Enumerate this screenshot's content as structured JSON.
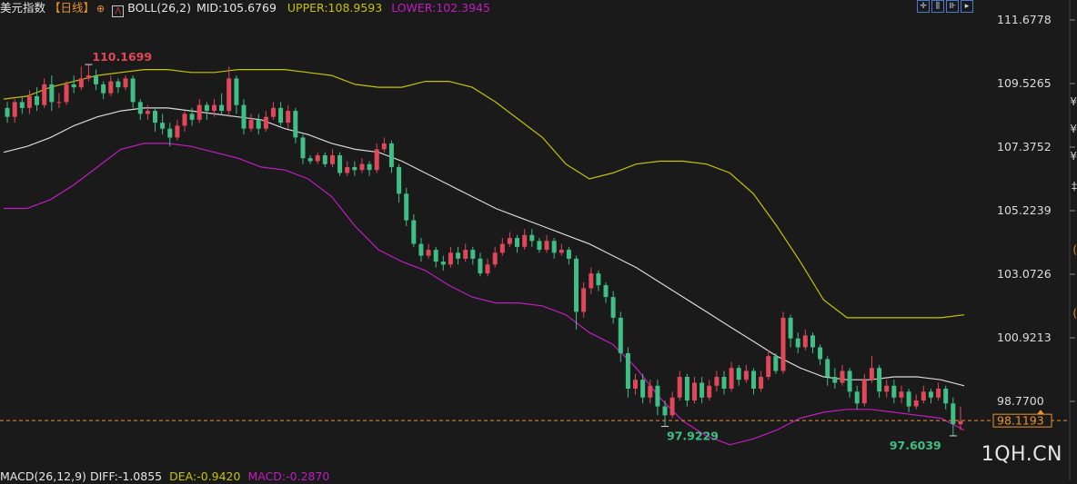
{
  "header": {
    "symbol": "美元指数",
    "period": "【日线】",
    "indicator_icon": "boll-indicator-icon",
    "boll": "BOLL(26,2)",
    "mid": "MID:105.6769",
    "upper": "UPPER:108.9593",
    "lower": "LOWER:102.3945"
  },
  "toolbar": {
    "icons": [
      "crosshair-icon",
      "candle-view-icon",
      "indicator-icon",
      "next-icon"
    ]
  },
  "price_axis": {
    "ticks": [
      "111.6778",
      "109.5265",
      "107.3752",
      "105.2239",
      "103.0726",
      "100.9213",
      "98.7700"
    ]
  },
  "current_price": "98.1193",
  "annotations": {
    "high": "110.1699",
    "low_left": "97.9229",
    "low_right": "97.6039"
  },
  "macd": {
    "label": "MACD(26,12,9)",
    "diff": "DIFF:-1.0855",
    "dea": "DEA:-0.9420",
    "macd": "MACD:-0.2870"
  },
  "watermark": "1QH.CN",
  "colors": {
    "background": "#1a1a1a",
    "up": "#e0485a",
    "down": "#3fbf86",
    "mid": "#d9d9d9",
    "upper": "#c8c200",
    "lower": "#c21cc2",
    "axis_text": "#dcdcdc",
    "current_price": "#e8922e"
  },
  "chart_data": {
    "type": "candlestick",
    "title": "美元指数 日线",
    "ylim": [
      96.9,
      112.4
    ],
    "yticks": [
      111.6778,
      109.5265,
      107.3752,
      105.2239,
      103.0726,
      100.9213,
      98.77
    ],
    "candles": [
      [
        108.7,
        108.4,
        108.9,
        108.2
      ],
      [
        108.4,
        108.9,
        109.0,
        108.2
      ],
      [
        108.9,
        108.7,
        109.1,
        108.5
      ],
      [
        108.7,
        109.1,
        109.3,
        108.5
      ],
      [
        109.1,
        108.8,
        109.4,
        108.6
      ],
      [
        108.8,
        109.5,
        109.7,
        108.7
      ],
      [
        109.5,
        108.9,
        109.8,
        108.6
      ],
      [
        108.9,
        108.9,
        109.2,
        108.7
      ],
      [
        108.9,
        109.5,
        109.6,
        108.8
      ],
      [
        109.5,
        109.4,
        109.8,
        109.2
      ],
      [
        109.4,
        109.7,
        110.1,
        109.3
      ],
      [
        109.7,
        109.8,
        110.17,
        109.6
      ],
      [
        109.8,
        109.5,
        110.0,
        109.3
      ],
      [
        109.5,
        109.2,
        109.6,
        109.0
      ],
      [
        109.2,
        109.6,
        109.8,
        109.1
      ],
      [
        109.6,
        109.4,
        109.7,
        109.2
      ],
      [
        109.4,
        109.7,
        109.8,
        109.3
      ],
      [
        109.7,
        108.9,
        109.8,
        108.7
      ],
      [
        108.9,
        108.5,
        109.0,
        108.3
      ],
      [
        108.5,
        108.6,
        108.8,
        108.3
      ],
      [
        108.6,
        108.2,
        108.7,
        107.9
      ],
      [
        108.2,
        108.0,
        108.5,
        107.8
      ],
      [
        108.0,
        107.7,
        108.2,
        107.4
      ],
      [
        107.7,
        108.1,
        108.3,
        107.6
      ],
      [
        108.1,
        108.5,
        108.6,
        107.9
      ],
      [
        108.5,
        108.3,
        108.7,
        108.1
      ],
      [
        108.3,
        108.8,
        109.0,
        108.2
      ],
      [
        108.8,
        108.6,
        108.9,
        108.3
      ],
      [
        108.6,
        108.8,
        109.0,
        108.4
      ],
      [
        108.8,
        108.6,
        109.2,
        108.5
      ],
      [
        108.6,
        109.7,
        110.1,
        108.4
      ],
      [
        109.7,
        108.8,
        109.8,
        108.5
      ],
      [
        108.8,
        108.0,
        109.0,
        107.8
      ],
      [
        108.0,
        108.3,
        108.5,
        107.9
      ],
      [
        108.3,
        108.0,
        108.5,
        107.8
      ],
      [
        108.0,
        108.4,
        108.6,
        107.9
      ],
      [
        108.4,
        108.7,
        108.9,
        108.3
      ],
      [
        108.7,
        108.2,
        108.9,
        108.1
      ],
      [
        108.2,
        108.6,
        108.8,
        108.0
      ],
      [
        108.6,
        107.7,
        108.7,
        107.5
      ],
      [
        107.7,
        107.0,
        107.8,
        106.8
      ],
      [
        107.0,
        106.9,
        107.1,
        106.8
      ],
      [
        106.9,
        107.1,
        107.2,
        106.8
      ],
      [
        107.1,
        106.8,
        107.2,
        106.7
      ],
      [
        106.8,
        107.1,
        107.3,
        106.7
      ],
      [
        107.1,
        106.5,
        107.2,
        106.4
      ],
      [
        106.5,
        106.7,
        106.9,
        106.4
      ],
      [
        106.7,
        106.6,
        106.9,
        106.4
      ],
      [
        106.6,
        106.8,
        107.0,
        106.5
      ],
      [
        106.8,
        106.6,
        106.9,
        106.4
      ],
      [
        106.6,
        107.3,
        107.5,
        106.5
      ],
      [
        107.3,
        107.5,
        107.7,
        107.2
      ],
      [
        107.5,
        106.7,
        107.6,
        106.5
      ],
      [
        106.7,
        105.8,
        106.8,
        105.5
      ],
      [
        105.8,
        104.9,
        106.0,
        104.7
      ],
      [
        104.9,
        104.1,
        105.1,
        104.0
      ],
      [
        104.1,
        103.7,
        104.3,
        103.5
      ],
      [
        103.7,
        103.9,
        104.1,
        103.6
      ],
      [
        103.9,
        103.5,
        104.0,
        103.3
      ],
      [
        103.5,
        103.4,
        103.7,
        103.2
      ],
      [
        103.4,
        103.8,
        104.0,
        103.3
      ],
      [
        103.8,
        103.6,
        104.0,
        103.4
      ],
      [
        103.6,
        103.9,
        104.1,
        103.5
      ],
      [
        103.9,
        103.6,
        104.0,
        103.4
      ],
      [
        103.6,
        103.1,
        103.8,
        103.0
      ],
      [
        103.1,
        103.4,
        103.6,
        103.0
      ],
      [
        103.4,
        103.8,
        104.0,
        103.3
      ],
      [
        103.8,
        104.1,
        104.3,
        103.7
      ],
      [
        104.1,
        104.3,
        104.5,
        104.0
      ],
      [
        104.3,
        104.0,
        104.4,
        103.8
      ],
      [
        104.0,
        104.4,
        104.6,
        103.9
      ],
      [
        104.4,
        104.2,
        104.6,
        104.0
      ],
      [
        104.2,
        103.9,
        104.3,
        103.8
      ],
      [
        103.9,
        104.2,
        104.4,
        103.8
      ],
      [
        104.2,
        103.8,
        104.3,
        103.6
      ],
      [
        103.8,
        103.9,
        104.1,
        103.7
      ],
      [
        103.9,
        103.6,
        104.0,
        103.4
      ],
      [
        103.6,
        101.8,
        103.7,
        101.2
      ],
      [
        101.8,
        102.6,
        102.8,
        101.6
      ],
      [
        102.6,
        103.1,
        103.3,
        102.4
      ],
      [
        103.1,
        102.7,
        103.2,
        102.5
      ],
      [
        102.7,
        102.3,
        102.8,
        102.1
      ],
      [
        102.3,
        101.6,
        102.5,
        101.4
      ],
      [
        101.6,
        100.4,
        101.8,
        100.1
      ],
      [
        100.4,
        99.2,
        100.6,
        98.9
      ],
      [
        99.2,
        99.5,
        99.7,
        99.0
      ],
      [
        99.5,
        98.9,
        99.7,
        98.7
      ],
      [
        98.9,
        99.3,
        99.5,
        98.7
      ],
      [
        99.3,
        98.6,
        99.5,
        98.3
      ],
      [
        98.6,
        98.3,
        98.8,
        97.92
      ],
      [
        98.3,
        98.9,
        99.1,
        98.2
      ],
      [
        98.9,
        99.6,
        99.8,
        98.8
      ],
      [
        99.6,
        98.8,
        99.7,
        98.6
      ],
      [
        98.8,
        99.4,
        99.6,
        98.7
      ],
      [
        99.4,
        98.9,
        99.6,
        98.7
      ],
      [
        98.9,
        99.3,
        99.5,
        98.8
      ],
      [
        99.3,
        99.6,
        99.8,
        99.1
      ],
      [
        99.6,
        99.2,
        99.8,
        99.0
      ],
      [
        99.2,
        99.9,
        100.1,
        99.1
      ],
      [
        99.9,
        99.5,
        100.0,
        99.3
      ],
      [
        99.5,
        99.8,
        100.0,
        99.4
      ],
      [
        99.8,
        99.2,
        99.9,
        99.0
      ],
      [
        99.2,
        99.6,
        99.8,
        99.1
      ],
      [
        99.6,
        100.3,
        100.5,
        99.5
      ],
      [
        100.3,
        99.8,
        100.4,
        99.7
      ],
      [
        99.8,
        101.6,
        101.8,
        99.7
      ],
      [
        101.6,
        100.9,
        101.7,
        100.6
      ],
      [
        100.9,
        100.6,
        101.1,
        100.4
      ],
      [
        100.6,
        101.0,
        101.2,
        100.5
      ],
      [
        101.0,
        100.6,
        101.1,
        100.4
      ],
      [
        100.6,
        100.2,
        100.7,
        100.0
      ],
      [
        100.2,
        99.6,
        100.3,
        99.3
      ],
      [
        99.6,
        99.4,
        99.9,
        99.2
      ],
      [
        99.4,
        99.8,
        100.0,
        99.3
      ],
      [
        99.8,
        99.1,
        99.9,
        98.9
      ],
      [
        99.1,
        98.7,
        99.3,
        98.5
      ],
      [
        98.7,
        99.5,
        99.7,
        98.6
      ],
      [
        99.5,
        99.9,
        100.3,
        99.4
      ],
      [
        99.9,
        99.1,
        100.0,
        98.9
      ],
      [
        99.1,
        99.3,
        99.5,
        98.9
      ],
      [
        99.3,
        98.9,
        99.5,
        98.7
      ],
      [
        98.9,
        99.1,
        99.3,
        98.7
      ],
      [
        99.1,
        98.6,
        99.2,
        98.4
      ],
      [
        98.6,
        98.8,
        99.0,
        98.5
      ],
      [
        98.8,
        99.1,
        99.3,
        98.7
      ],
      [
        99.1,
        98.9,
        99.2,
        98.7
      ],
      [
        98.9,
        99.2,
        99.4,
        98.8
      ],
      [
        99.2,
        98.7,
        99.3,
        98.5
      ],
      [
        98.7,
        98.0,
        98.9,
        97.6
      ],
      [
        98.0,
        98.1,
        98.6,
        97.8
      ]
    ],
    "boll_upper": [
      109.0,
      109.1,
      109.4,
      109.6,
      109.8,
      109.9,
      110.0,
      110.0,
      109.9,
      109.9,
      110.0,
      110.0,
      110.0,
      109.9,
      109.8,
      109.5,
      109.4,
      109.4,
      109.6,
      109.6,
      109.4,
      108.9,
      108.3,
      107.7,
      106.8,
      106.3,
      106.5,
      106.8,
      106.9,
      106.9,
      106.8,
      106.5,
      105.8,
      104.7,
      103.5,
      102.2,
      101.6,
      101.6,
      101.6,
      101.6,
      101.6,
      101.7
    ],
    "boll_mid": [
      107.2,
      107.4,
      107.7,
      108.1,
      108.4,
      108.6,
      108.7,
      108.7,
      108.6,
      108.5,
      108.4,
      108.3,
      108.0,
      107.8,
      107.5,
      107.3,
      107.2,
      106.9,
      106.5,
      106.1,
      105.7,
      105.3,
      105.0,
      104.7,
      104.4,
      104.1,
      103.7,
      103.3,
      102.8,
      102.3,
      101.8,
      101.3,
      100.8,
      100.3,
      99.9,
      99.6,
      99.5,
      99.5,
      99.6,
      99.6,
      99.5,
      99.3
    ],
    "boll_lower": [
      105.3,
      105.3,
      105.6,
      106.1,
      106.7,
      107.3,
      107.5,
      107.5,
      107.4,
      107.2,
      107.0,
      106.7,
      106.6,
      106.3,
      105.7,
      104.7,
      103.9,
      103.5,
      103.2,
      102.7,
      102.3,
      102.1,
      102.1,
      102.0,
      101.7,
      101.1,
      100.7,
      99.9,
      98.9,
      98.1,
      97.6,
      97.3,
      97.5,
      97.8,
      98.2,
      98.4,
      98.5,
      98.5,
      98.4,
      98.3,
      98.2,
      97.8
    ],
    "current_price": 98.1193,
    "high_label": 110.1699,
    "low_labels": [
      97.9229,
      97.6039
    ]
  }
}
